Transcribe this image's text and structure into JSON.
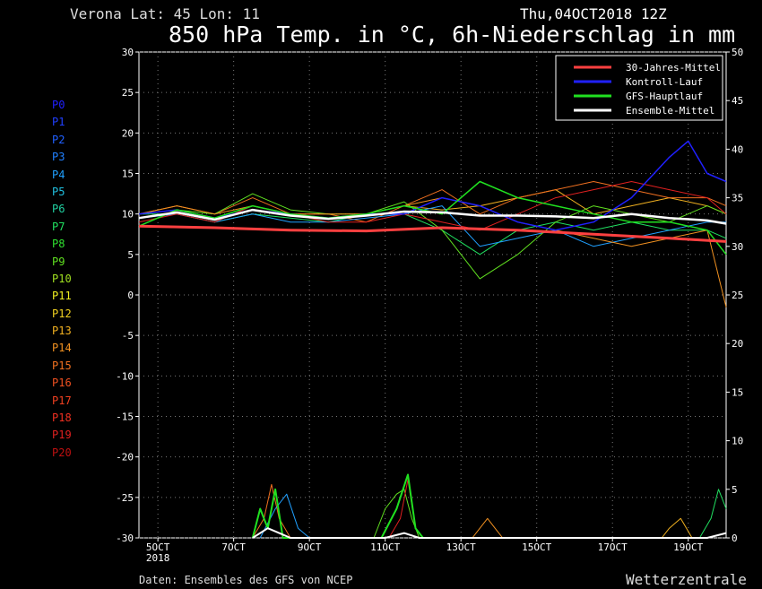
{
  "header": {
    "location": "Verona   Lat: 45 Lon: 11",
    "run": "Thu,04OCT2018 12Z",
    "title": "850 hPa Temp. in °C, 6h-Niederschlag in mm"
  },
  "footer": {
    "source": "Daten: Ensembles des GFS von NCEP",
    "brand": "Wetterzentrale"
  },
  "members": [
    {
      "label": "P0",
      "color": "#2020ff"
    },
    {
      "label": "P1",
      "color": "#2040ff"
    },
    {
      "label": "P2",
      "color": "#2060ff"
    },
    {
      "label": "P3",
      "color": "#2080ff"
    },
    {
      "label": "P4",
      "color": "#20a0ff"
    },
    {
      "label": "P5",
      "color": "#20c0e0"
    },
    {
      "label": "P6",
      "color": "#20d0a0"
    },
    {
      "label": "P7",
      "color": "#20e060"
    },
    {
      "label": "P8",
      "color": "#30e030"
    },
    {
      "label": "P9",
      "color": "#60e020"
    },
    {
      "label": "P10",
      "color": "#a0e020"
    },
    {
      "label": "P11",
      "color": "#f0f020"
    },
    {
      "label": "P12",
      "color": "#f0d020"
    },
    {
      "label": "P13",
      "color": "#f0b020"
    },
    {
      "label": "P14",
      "color": "#f09020"
    },
    {
      "label": "P15",
      "color": "#f07020"
    },
    {
      "label": "P16",
      "color": "#f05020"
    },
    {
      "label": "P17",
      "color": "#f04020"
    },
    {
      "label": "P18",
      "color": "#f03020"
    },
    {
      "label": "P19",
      "color": "#e02020"
    },
    {
      "label": "P20",
      "color": "#c01010"
    }
  ],
  "chart_data": {
    "type": "line",
    "grid": true,
    "legend_position": "top-right",
    "x_ticks": [
      "5OCT",
      "7OCT",
      "9OCT",
      "11OCT",
      "13OCT",
      "15OCT",
      "17OCT",
      "19OCT"
    ],
    "x_tick_sublabel": "2018",
    "x_range": [
      0,
      15.5
    ],
    "y_left_range": [
      -30,
      30
    ],
    "y_left_ticks": [
      30,
      25,
      20,
      15,
      10,
      5,
      0,
      -5,
      -10,
      -15,
      -20,
      -25,
      -30
    ],
    "y_right_range": [
      0,
      50
    ],
    "y_right_ticks": [
      50,
      45,
      40,
      35,
      30,
      25,
      20,
      15,
      10,
      5,
      0
    ],
    "legend": [
      {
        "name": "30-Jahres-Mittel",
        "color": "#ff4040"
      },
      {
        "name": "Kontroll-Lauf",
        "color": "#2020ff"
      },
      {
        "name": "GFS-Hauptlauf",
        "color": "#20e020"
      },
      {
        "name": "Ensemble-Mittel",
        "color": "#ffffff"
      }
    ],
    "series_temp": {
      "climate_mean": [
        [
          0,
          8.5
        ],
        [
          2,
          8.3
        ],
        [
          4,
          8.0
        ],
        [
          6,
          7.9
        ],
        [
          8,
          8.3
        ],
        [
          10,
          8.0
        ],
        [
          12,
          7.5
        ],
        [
          14,
          7.0
        ],
        [
          15.5,
          6.6
        ]
      ],
      "control": [
        [
          0,
          10
        ],
        [
          1,
          10.5
        ],
        [
          2,
          9.5
        ],
        [
          3,
          10.5
        ],
        [
          4,
          10
        ],
        [
          5,
          9.5
        ],
        [
          6,
          10
        ],
        [
          7,
          10
        ],
        [
          8,
          12
        ],
        [
          9,
          11
        ],
        [
          10,
          9
        ],
        [
          11,
          8
        ],
        [
          12,
          9
        ],
        [
          13,
          12
        ],
        [
          14,
          17
        ],
        [
          14.5,
          19
        ],
        [
          15,
          15
        ],
        [
          15.5,
          14
        ]
      ],
      "gfs_main": [
        [
          0,
          8.5
        ],
        [
          1,
          10.5
        ],
        [
          2,
          9.5
        ],
        [
          3,
          11
        ],
        [
          4,
          10
        ],
        [
          5,
          9.5
        ],
        [
          6,
          10
        ],
        [
          7,
          11
        ],
        [
          8,
          10
        ],
        [
          9,
          14
        ],
        [
          10,
          12
        ],
        [
          11,
          11
        ],
        [
          12,
          10
        ],
        [
          13,
          9
        ],
        [
          14,
          9
        ],
        [
          15,
          8
        ],
        [
          15.5,
          5
        ]
      ],
      "ensemble_mean": [
        [
          0,
          9.5
        ],
        [
          1,
          10.2
        ],
        [
          2,
          9.3
        ],
        [
          3,
          10.5
        ],
        [
          4,
          9.8
        ],
        [
          5,
          9.4
        ],
        [
          6,
          9.8
        ],
        [
          7,
          10.3
        ],
        [
          8,
          10.2
        ],
        [
          9,
          9.8
        ],
        [
          10,
          9.8
        ],
        [
          11,
          9.7
        ],
        [
          12,
          9.5
        ],
        [
          13,
          10
        ],
        [
          14,
          9.5
        ],
        [
          15,
          9.2
        ],
        [
          15.5,
          8.8
        ]
      ],
      "members": [
        [
          [
            0,
            10
          ],
          [
            1,
            10.5
          ],
          [
            2,
            9.5
          ],
          [
            3,
            11
          ],
          [
            4,
            10
          ],
          [
            5,
            9.5
          ],
          [
            6,
            10
          ],
          [
            7,
            11
          ],
          [
            8,
            10.5
          ],
          [
            9,
            11
          ],
          [
            10,
            12
          ],
          [
            11,
            13
          ],
          [
            12,
            10
          ],
          [
            13,
            11
          ],
          [
            14,
            12
          ],
          [
            15,
            11
          ],
          [
            15.5,
            10
          ]
        ],
        [
          [
            0,
            10
          ],
          [
            1,
            10
          ],
          [
            2,
            9
          ],
          [
            3,
            10
          ],
          [
            4,
            9.5
          ],
          [
            5,
            9
          ],
          [
            6,
            10
          ],
          [
            7,
            10
          ],
          [
            8,
            8
          ],
          [
            9,
            5
          ],
          [
            10,
            8
          ],
          [
            11,
            9
          ],
          [
            12,
            8
          ],
          [
            13,
            9
          ],
          [
            14,
            8
          ],
          [
            15,
            8
          ],
          [
            15.5,
            7
          ]
        ],
        [
          [
            0,
            10
          ],
          [
            1,
            11
          ],
          [
            2,
            10
          ],
          [
            3,
            12
          ],
          [
            4,
            10
          ],
          [
            5,
            10
          ],
          [
            6,
            9
          ],
          [
            7,
            11
          ],
          [
            8,
            13
          ],
          [
            9,
            10
          ],
          [
            10,
            12
          ],
          [
            11,
            13
          ],
          [
            12,
            14
          ],
          [
            13,
            13
          ],
          [
            14,
            12
          ],
          [
            15,
            12
          ],
          [
            15.5,
            11
          ]
        ],
        [
          [
            0,
            9.5
          ],
          [
            1,
            10
          ],
          [
            2,
            9
          ],
          [
            3,
            10
          ],
          [
            4,
            9
          ],
          [
            5,
            9
          ],
          [
            6,
            9.5
          ],
          [
            7,
            10
          ],
          [
            8,
            11
          ],
          [
            9,
            6
          ],
          [
            10,
            7
          ],
          [
            11,
            8
          ],
          [
            12,
            6
          ],
          [
            13,
            7
          ],
          [
            14,
            8
          ],
          [
            15,
            9
          ],
          [
            15.5,
            9
          ]
        ],
        [
          [
            0,
            10
          ],
          [
            1,
            10.5
          ],
          [
            2,
            10
          ],
          [
            3,
            12.5
          ],
          [
            4,
            10.5
          ],
          [
            5,
            10
          ],
          [
            6,
            10
          ],
          [
            7,
            11.5
          ],
          [
            8,
            8
          ],
          [
            9,
            2
          ],
          [
            10,
            5
          ],
          [
            11,
            9
          ],
          [
            12,
            11
          ],
          [
            13,
            10
          ],
          [
            14,
            9
          ],
          [
            15,
            11
          ],
          [
            15.5,
            10
          ]
        ],
        [
          [
            0,
            9
          ],
          [
            1,
            10
          ],
          [
            2,
            9
          ],
          [
            3,
            11
          ],
          [
            4,
            10
          ],
          [
            5,
            9
          ],
          [
            6,
            9
          ],
          [
            7,
            10
          ],
          [
            8,
            9
          ],
          [
            9,
            8
          ],
          [
            10,
            10
          ],
          [
            11,
            12
          ],
          [
            12,
            13
          ],
          [
            13,
            14
          ],
          [
            14,
            13
          ],
          [
            15,
            12
          ],
          [
            15.5,
            10
          ]
        ],
        [
          [
            0,
            10
          ],
          [
            1,
            11
          ],
          [
            2,
            10
          ],
          [
            3,
            11
          ],
          [
            4,
            10
          ],
          [
            5,
            10
          ],
          [
            6,
            10
          ],
          [
            7,
            11
          ],
          [
            8,
            12
          ],
          [
            9,
            11
          ],
          [
            10,
            9
          ],
          [
            11,
            8
          ],
          [
            12,
            7
          ],
          [
            13,
            6
          ],
          [
            14,
            7
          ],
          [
            15,
            8
          ],
          [
            15.5,
            -1.5
          ]
        ]
      ]
    },
    "series_precip": {
      "members": [
        [
          [
            3.0,
            0
          ],
          [
            3.3,
            2
          ],
          [
            3.5,
            5.5
          ],
          [
            3.7,
            2
          ],
          [
            4.0,
            0
          ]
        ],
        [
          [
            3.2,
            0
          ],
          [
            3.6,
            3
          ],
          [
            3.9,
            4.5
          ],
          [
            4.2,
            1
          ],
          [
            4.5,
            0
          ]
        ],
        [
          [
            6.2,
            0
          ],
          [
            6.5,
            3
          ],
          [
            6.8,
            4.5
          ],
          [
            7.0,
            5
          ],
          [
            7.2,
            2
          ],
          [
            7.4,
            0
          ]
        ],
        [
          [
            6.6,
            0
          ],
          [
            6.9,
            2
          ],
          [
            7.1,
            6
          ],
          [
            7.3,
            1
          ],
          [
            7.5,
            0
          ]
        ],
        [
          [
            8.8,
            0
          ],
          [
            9.0,
            1
          ],
          [
            9.2,
            2
          ],
          [
            9.4,
            1
          ],
          [
            9.6,
            0
          ]
        ],
        [
          [
            13.8,
            0
          ],
          [
            14.0,
            1
          ],
          [
            14.3,
            2
          ],
          [
            14.6,
            0
          ]
        ],
        [
          [
            14.8,
            0
          ],
          [
            15.1,
            2
          ],
          [
            15.3,
            5
          ],
          [
            15.5,
            3
          ]
        ]
      ],
      "gfs_main": [
        [
          3.0,
          0
        ],
        [
          3.2,
          3
        ],
        [
          3.4,
          1
        ],
        [
          3.6,
          5
        ],
        [
          3.8,
          0
        ],
        [
          6.4,
          0
        ],
        [
          6.8,
          3
        ],
        [
          7.1,
          6.5
        ],
        [
          7.3,
          1
        ],
        [
          7.5,
          0
        ]
      ],
      "ensemble_mean": [
        [
          3.0,
          0
        ],
        [
          3.4,
          1
        ],
        [
          3.7,
          0.5
        ],
        [
          4.0,
          0
        ],
        [
          6.5,
          0
        ],
        [
          7.0,
          0.5
        ],
        [
          7.4,
          0
        ],
        [
          15.0,
          0
        ],
        [
          15.5,
          0.5
        ]
      ]
    }
  }
}
